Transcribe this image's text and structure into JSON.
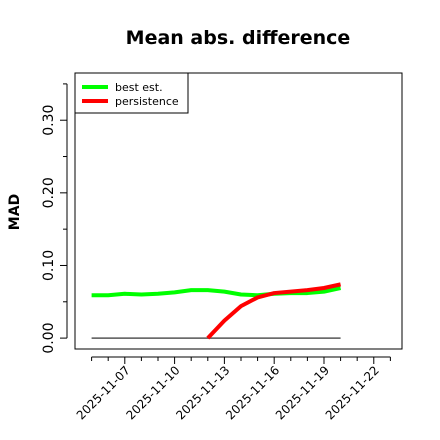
{
  "chart_data": {
    "type": "line",
    "title": "Mean abs. difference",
    "ylabel": "MAD",
    "xlabel": "",
    "xlim": [
      "2025-11-04",
      "2025-11-23.7"
    ],
    "ylim": [
      -0.015,
      0.365
    ],
    "y_ticks": [
      0.0,
      0.1,
      0.2,
      0.3
    ],
    "y_tick_labels": [
      "0.00",
      "0.10",
      "0.20",
      "0.30"
    ],
    "y_minor_ticks": [
      0.05,
      0.15,
      0.25,
      0.35
    ],
    "x_ticks": [
      "2025-11-07",
      "2025-11-10",
      "2025-11-13",
      "2025-11-16",
      "2025-11-19",
      "2025-11-22"
    ],
    "x_minor_ticks": [
      "2025-11-05",
      "2025-11-06",
      "2025-11-08",
      "2025-11-09",
      "2025-11-11",
      "2025-11-12",
      "2025-11-14",
      "2025-11-15",
      "2025-11-17",
      "2025-11-18",
      "2025-11-20",
      "2025-11-21",
      "2025-11-23"
    ],
    "grid": false,
    "legend": {
      "placement": "top-left",
      "entries": [
        "best est.",
        "persistence"
      ]
    },
    "reference_line": {
      "y": 0,
      "from": "2025-11-05",
      "to": "2025-11-20",
      "color": "#555555"
    },
    "series": [
      {
        "name": "best est.",
        "color": "#00ff00",
        "x": [
          "2025-11-05",
          "2025-11-06",
          "2025-11-07",
          "2025-11-08",
          "2025-11-09",
          "2025-11-10",
          "2025-11-11",
          "2025-11-12",
          "2025-11-13",
          "2025-11-14",
          "2025-11-15",
          "2025-11-16",
          "2025-11-17",
          "2025-11-18",
          "2025-11-19",
          "2025-11-20"
        ],
        "values": [
          0.059,
          0.059,
          0.061,
          0.06,
          0.061,
          0.063,
          0.066,
          0.066,
          0.064,
          0.06,
          0.059,
          0.061,
          0.062,
          0.062,
          0.064,
          0.069
        ]
      },
      {
        "name": "persistence",
        "color": "#ff0000",
        "x": [
          "2025-11-12",
          "2025-11-13",
          "2025-11-14",
          "2025-11-15",
          "2025-11-16",
          "2025-11-17",
          "2025-11-18",
          "2025-11-19",
          "2025-11-20"
        ],
        "values": [
          0.0,
          0.024,
          0.044,
          0.056,
          0.062,
          0.064,
          0.066,
          0.069,
          0.074
        ]
      }
    ]
  }
}
